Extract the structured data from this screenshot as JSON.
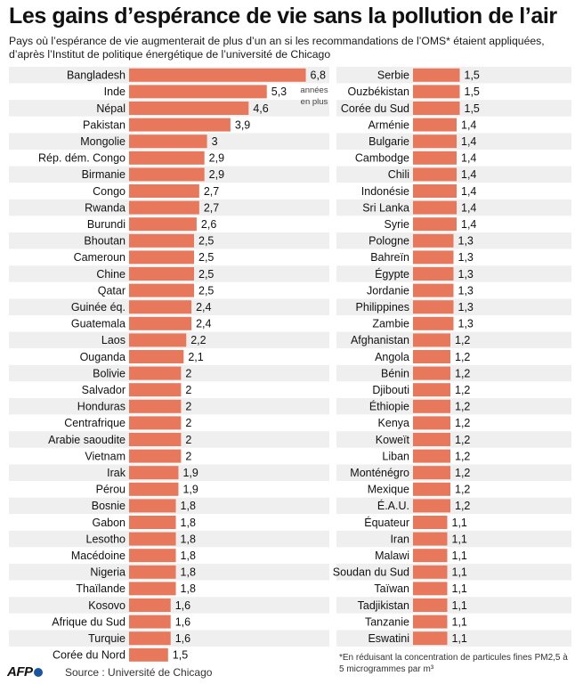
{
  "header": {
    "title": "Les gains d’espérance de vie sans la pollution de l’air",
    "subtitle": "Pays où l’espérance de vie augmenterait de plus d’un an si les recommandations de l’OMS* étaient appliquées, d’après l’Institut de politique énergétique de l’université de Chicago"
  },
  "unit_note": {
    "line1": "années",
    "line2": "en plus"
  },
  "footnote": {
    "text": "*En réduisant la concentration de particules fines PM2,5 à 5 microgrammes par m³"
  },
  "footer": {
    "logo": "AFP",
    "source": "Source : Université de Chicago"
  },
  "colors": {
    "bar": "#e8785c",
    "row_even": "#efefef",
    "row_odd": "#ffffff"
  },
  "chart_data": [
    {
      "type": "bar",
      "orientation": "horizontal",
      "title": "Les gains d’espérance de vie sans la pollution de l’air",
      "unit": "années en plus",
      "xlim": [
        0,
        7
      ],
      "categories": [
        "Bangladesh",
        "Inde",
        "Népal",
        "Pakistan",
        "Mongolie",
        "Rép. dém. Congo",
        "Birmanie",
        "Congo",
        "Rwanda",
        "Burundi",
        "Bhoutan",
        "Cameroun",
        "Chine",
        "Qatar",
        "Guinée éq.",
        "Guatemala",
        "Laos",
        "Ouganda",
        "Bolivie",
        "Salvador",
        "Honduras",
        "Centrafrique",
        "Arabie saoudite",
        "Vietnam",
        "Irak",
        "Pérou",
        "Bosnie",
        "Gabon",
        "Lesotho",
        "Macédoine",
        "Nigeria",
        "Thaïlande",
        "Kosovo",
        "Afrique du Sud",
        "Turquie",
        "Corée du Nord"
      ],
      "values": [
        6.8,
        5.3,
        4.6,
        3.9,
        3,
        2.9,
        2.9,
        2.7,
        2.7,
        2.6,
        2.5,
        2.5,
        2.5,
        2.5,
        2.4,
        2.4,
        2.2,
        2.1,
        2,
        2,
        2,
        2,
        2,
        2,
        1.9,
        1.9,
        1.8,
        1.8,
        1.8,
        1.8,
        1.8,
        1.8,
        1.6,
        1.6,
        1.6,
        1.5
      ],
      "labels": [
        "6,8",
        "5,3",
        "4,6",
        "3,9",
        "3",
        "2,9",
        "2,9",
        "2,7",
        "2,7",
        "2,6",
        "2,5",
        "2,5",
        "2,5",
        "2,5",
        "2,4",
        "2,4",
        "2,2",
        "2,1",
        "2",
        "2",
        "2",
        "2",
        "2",
        "2",
        "1,9",
        "1,9",
        "1,8",
        "1,8",
        "1,8",
        "1,8",
        "1,8",
        "1,8",
        "1,6",
        "1,6",
        "1,6",
        "1,5"
      ]
    },
    {
      "type": "bar",
      "orientation": "horizontal",
      "unit": "années en plus",
      "xlim": [
        0,
        7
      ],
      "categories": [
        "Serbie",
        "Ouzbékistan",
        "Corée du Sud",
        "Arménie",
        "Bulgarie",
        "Cambodge",
        "Chili",
        "Indonésie",
        "Sri Lanka",
        "Syrie",
        "Pologne",
        "Bahreïn",
        "Égypte",
        "Jordanie",
        "Philippines",
        "Zambie",
        "Afghanistan",
        "Angola",
        "Bénin",
        "Djibouti",
        "Éthiopie",
        "Kenya",
        "Koweït",
        "Liban",
        "Monténégro",
        "Mexique",
        "É.A.U.",
        "Équateur",
        "Iran",
        "Malawi",
        "Soudan du Sud",
        "Taïwan",
        "Tadjikistan",
        "Tanzanie",
        "Eswatini"
      ],
      "values": [
        1.5,
        1.5,
        1.5,
        1.4,
        1.4,
        1.4,
        1.4,
        1.4,
        1.4,
        1.4,
        1.3,
        1.3,
        1.3,
        1.3,
        1.3,
        1.3,
        1.2,
        1.2,
        1.2,
        1.2,
        1.2,
        1.2,
        1.2,
        1.2,
        1.2,
        1.2,
        1.2,
        1.1,
        1.1,
        1.1,
        1.1,
        1.1,
        1.1,
        1.1,
        1.1
      ],
      "labels": [
        "1,5",
        "1,5",
        "1,5",
        "1,4",
        "1,4",
        "1,4",
        "1,4",
        "1,4",
        "1,4",
        "1,4",
        "1,3",
        "1,3",
        "1,3",
        "1,3",
        "1,3",
        "1,3",
        "1,2",
        "1,2",
        "1,2",
        "1,2",
        "1,2",
        "1,2",
        "1,2",
        "1,2",
        "1,2",
        "1,2",
        "1,2",
        "1,1",
        "1,1",
        "1,1",
        "1,1",
        "1,1",
        "1,1",
        "1,1",
        "1,1"
      ]
    }
  ]
}
